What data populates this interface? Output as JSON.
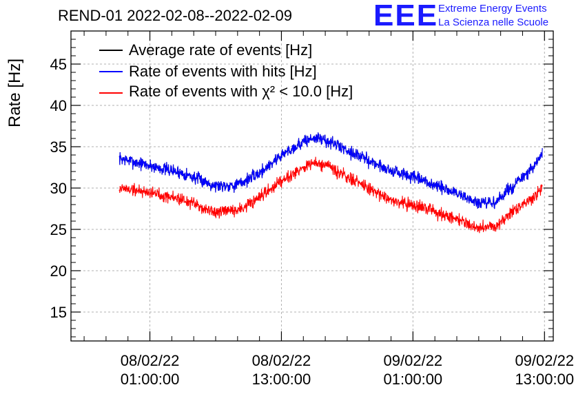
{
  "header": {
    "title": "REND-01 2022-02-08--2022-02-09",
    "logo_mark": "EEE",
    "logo_line1": "Extreme Energy Events",
    "logo_line2": "La Scienza nelle Scuole"
  },
  "colors": {
    "average": "#000000",
    "hits": "#0000ff",
    "chi2": "#ff0000",
    "grid": "#b0b0b0",
    "logo": "#1a1aff"
  },
  "chart_data": {
    "type": "line",
    "title": "REND-01 2022-02-08--2022-02-09",
    "ylabel": "Rate [Hz]",
    "xlabel": "",
    "ylim": [
      11.5,
      49
    ],
    "xlim_hours": [
      -7.2,
      36.8
    ],
    "x_unit": "hours since 08/02/22 01:00:00",
    "yticks": [
      15,
      20,
      25,
      30,
      35,
      40,
      45
    ],
    "xticks": [
      {
        "hours": 0,
        "date": "08/02/22",
        "time": "01:00:00"
      },
      {
        "hours": 12,
        "date": "08/02/22",
        "time": "13:00:00"
      },
      {
        "hours": 24,
        "date": "09/02/22",
        "time": "01:00:00"
      },
      {
        "hours": 36,
        "date": "09/02/22",
        "time": "13:00:00"
      }
    ],
    "grid": true,
    "legend_position": "top-left",
    "series": [
      {
        "name": "Average rate of events [Hz]",
        "color": "#000000",
        "x_hours": [
          -2.8,
          0,
          3,
          6,
          8,
          10,
          12,
          14,
          15,
          16,
          18,
          20,
          22,
          24,
          26,
          28,
          30,
          31.5,
          33,
          35,
          35.8
        ],
        "values": [
          33.6,
          32.7,
          31.8,
          30.3,
          30.4,
          31.8,
          34.0,
          35.6,
          36.1,
          35.8,
          34.6,
          33.3,
          32.1,
          31.3,
          30.3,
          29.4,
          28.1,
          28.2,
          30.1,
          32.4,
          34.2
        ],
        "noise": 0.55
      },
      {
        "name": "Rate of events with hits [Hz]",
        "color": "#0000ff",
        "x_hours": [
          -2.8,
          0,
          3,
          6,
          8,
          10,
          12,
          14,
          15,
          16,
          18,
          20,
          22,
          24,
          26,
          28,
          30,
          31.5,
          33,
          35,
          35.8
        ],
        "values": [
          33.6,
          32.7,
          31.8,
          30.3,
          30.4,
          31.8,
          34.0,
          35.6,
          36.1,
          35.8,
          34.6,
          33.3,
          32.1,
          31.3,
          30.3,
          29.4,
          28.1,
          28.2,
          30.1,
          32.4,
          34.2
        ],
        "noise": 0.55
      },
      {
        "name": "Rate of events with χ² < 10.0 [Hz]",
        "color": "#ff0000",
        "x_hours": [
          -2.8,
          0,
          3,
          6,
          8,
          10,
          12,
          14,
          15,
          16,
          18,
          20,
          22,
          24,
          26,
          28,
          30,
          31.5,
          33,
          35,
          35.8
        ],
        "values": [
          30.0,
          29.5,
          28.6,
          27.0,
          27.3,
          28.7,
          31.0,
          32.5,
          33.0,
          32.7,
          31.3,
          29.9,
          28.6,
          27.9,
          27.2,
          26.3,
          25.2,
          25.4,
          27.0,
          28.9,
          30.2
        ],
        "noise": 0.55
      }
    ]
  }
}
